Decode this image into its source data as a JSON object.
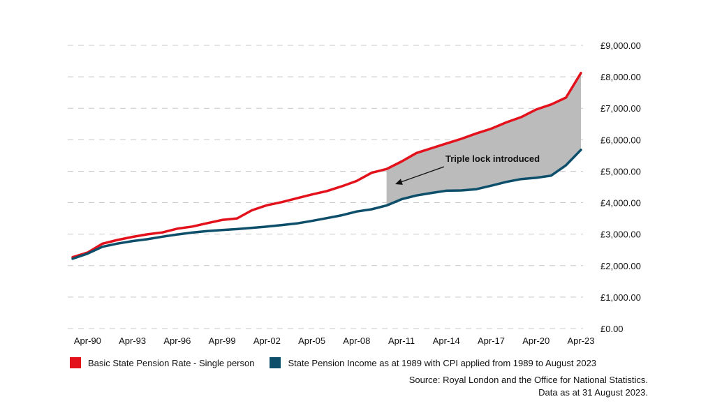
{
  "chart_data": {
    "type": "line",
    "x_labels": [
      "Apr-90",
      "Apr-93",
      "Apr-96",
      "Apr-99",
      "Apr-02",
      "Apr-05",
      "Apr-08",
      "Apr-11",
      "Apr-14",
      "Apr-17",
      "Apr-20",
      "Apr-23"
    ],
    "y_ticks": [
      "£0.00",
      "£1,000.00",
      "£2,000.00",
      "£3,000.00",
      "£4,000.00",
      "£5,000.00",
      "£6,000.00",
      "£7,000.00",
      "£8,000.00",
      "£9,000.00"
    ],
    "ylim": [
      0,
      9000
    ],
    "grid": true,
    "legend_placement": "bottom",
    "series": [
      {
        "name": "Basic State Pension Rate - Single person",
        "color": "#e3111b",
        "points": [
          [
            "Apr-89",
            2267
          ],
          [
            "Apr-90",
            2415
          ],
          [
            "Apr-91",
            2698
          ],
          [
            "Apr-92",
            2815
          ],
          [
            "Apr-93",
            2912
          ],
          [
            "Apr-94",
            2995
          ],
          [
            "Apr-95",
            3055
          ],
          [
            "Apr-96",
            3175
          ],
          [
            "Apr-97",
            3240
          ],
          [
            "Apr-98",
            3350
          ],
          [
            "Apr-99",
            3452
          ],
          [
            "Apr-00",
            3500
          ],
          [
            "Apr-01",
            3760
          ],
          [
            "Apr-02",
            3920
          ],
          [
            "Apr-03",
            4020
          ],
          [
            "Apr-04",
            4140
          ],
          [
            "Apr-05",
            4260
          ],
          [
            "Apr-06",
            4370
          ],
          [
            "Apr-07",
            4520
          ],
          [
            "Apr-08",
            4690
          ],
          [
            "Apr-09",
            4950
          ],
          [
            "Apr-10",
            5070
          ],
          [
            "Apr-11",
            5310
          ],
          [
            "Apr-12",
            5580
          ],
          [
            "Apr-13",
            5730
          ],
          [
            "Apr-14",
            5880
          ],
          [
            "Apr-15",
            6030
          ],
          [
            "Apr-16",
            6200
          ],
          [
            "Apr-17",
            6350
          ],
          [
            "Apr-18",
            6550
          ],
          [
            "Apr-19",
            6720
          ],
          [
            "Apr-20",
            6960
          ],
          [
            "Apr-21",
            7120
          ],
          [
            "Apr-22",
            7340
          ],
          [
            "Apr-23",
            8120
          ]
        ]
      },
      {
        "name": "State Pension Income as at 1989 with CPI applied from 1989 to August 2023",
        "color": "#0d4f6b",
        "points": [
          [
            "Apr-89",
            2220
          ],
          [
            "Apr-90",
            2380
          ],
          [
            "Apr-91",
            2600
          ],
          [
            "Apr-92",
            2700
          ],
          [
            "Apr-93",
            2780
          ],
          [
            "Apr-94",
            2840
          ],
          [
            "Apr-95",
            2920
          ],
          [
            "Apr-96",
            2990
          ],
          [
            "Apr-97",
            3050
          ],
          [
            "Apr-98",
            3100
          ],
          [
            "Apr-99",
            3130
          ],
          [
            "Apr-00",
            3160
          ],
          [
            "Apr-01",
            3200
          ],
          [
            "Apr-02",
            3240
          ],
          [
            "Apr-03",
            3290
          ],
          [
            "Apr-04",
            3340
          ],
          [
            "Apr-05",
            3420
          ],
          [
            "Apr-06",
            3510
          ],
          [
            "Apr-07",
            3600
          ],
          [
            "Apr-08",
            3720
          ],
          [
            "Apr-09",
            3790
          ],
          [
            "Apr-10",
            3910
          ],
          [
            "Apr-11",
            4110
          ],
          [
            "Apr-12",
            4230
          ],
          [
            "Apr-13",
            4310
          ],
          [
            "Apr-14",
            4380
          ],
          [
            "Apr-15",
            4390
          ],
          [
            "Apr-16",
            4430
          ],
          [
            "Apr-17",
            4540
          ],
          [
            "Apr-18",
            4660
          ],
          [
            "Apr-19",
            4750
          ],
          [
            "Apr-20",
            4790
          ],
          [
            "Apr-21",
            4860
          ],
          [
            "Apr-22",
            5190
          ],
          [
            "Apr-23",
            5680
          ]
        ]
      }
    ],
    "shaded_region": {
      "from": "Apr-10",
      "to": "Apr-23",
      "color": "#bbbbbb"
    },
    "annotation": {
      "text": "Triple lock introduced"
    }
  },
  "source": {
    "line1": "Source: Royal London and the Office for National Statistics.",
    "line2": "Data as at 31 August 2023."
  }
}
